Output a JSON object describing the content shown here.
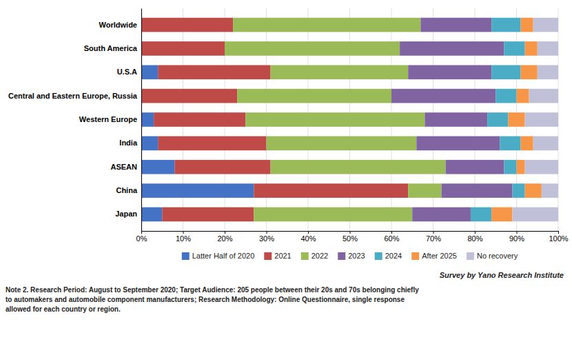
{
  "chart_data": {
    "type": "bar",
    "orientation": "horizontal",
    "stacked": true,
    "grid": true,
    "legend": "bottom",
    "categories": [
      "Japan",
      "China",
      "ASEAN",
      "India",
      "Western Europe",
      "Central and Eastern Europe, Russia",
      "U.S.A",
      "South America",
      "Worldwide"
    ],
    "series": [
      {
        "name": "Latter Half of 2020",
        "color": "#4472C4",
        "values": [
          5,
          27,
          8,
          4,
          3,
          0,
          4,
          0,
          0
        ]
      },
      {
        "name": "2021",
        "color": "#BE4B48",
        "values": [
          22,
          37,
          23,
          26,
          22,
          23,
          27,
          20,
          22
        ]
      },
      {
        "name": "2022",
        "color": "#9BBB59",
        "values": [
          38,
          8,
          42,
          36,
          43,
          37,
          33,
          42,
          45
        ]
      },
      {
        "name": "2023",
        "color": "#8064A2",
        "values": [
          14,
          17,
          14,
          20,
          15,
          25,
          20,
          25,
          17
        ]
      },
      {
        "name": "2024",
        "color": "#4BACC6",
        "values": [
          5,
          3,
          3,
          5,
          5,
          5,
          7,
          5,
          7
        ]
      },
      {
        "name": "After 2025",
        "color": "#F79646",
        "values": [
          5,
          4,
          2,
          3,
          4,
          3,
          4,
          3,
          3
        ]
      },
      {
        "name": "No recovery",
        "color": "#C0C0D8",
        "values": [
          11,
          4,
          8,
          6,
          8,
          7,
          5,
          5,
          6
        ]
      }
    ],
    "xlim": [
      0,
      100
    ],
    "xticks": [
      {
        "value": 0,
        "label": "0%"
      },
      {
        "value": 10,
        "label": "10%"
      },
      {
        "value": 20,
        "label": "20%"
      },
      {
        "value": 30,
        "label": "30%"
      },
      {
        "value": 40,
        "label": "40%"
      },
      {
        "value": 50,
        "label": "50%"
      },
      {
        "value": 60,
        "label": "60%"
      },
      {
        "value": 70,
        "label": "70%"
      },
      {
        "value": 80,
        "label": "80%"
      },
      {
        "value": 90,
        "label": "90%"
      },
      {
        "value": 100,
        "label": "100%"
      }
    ],
    "annotations": [
      "Survey by Yano Research Institute",
      "Note 2. Research Period: August to September 2020; Target Audience: 205 people between their 20s and 70s belonging chiefly\nto automakers and automobile component manufacturers; Research Methodology: Online Questionnaire, single response\nallowed for each country or region."
    ]
  }
}
